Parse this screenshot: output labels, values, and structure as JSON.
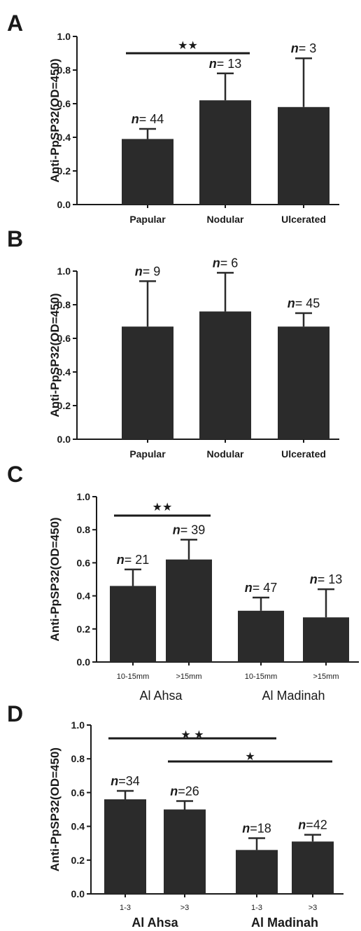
{
  "panel_labels": [
    "A",
    "B",
    "C",
    "D"
  ],
  "chart_data": [
    {
      "type": "bar",
      "panel": "A",
      "ylabel": "Anti-PpSP32(OD=450)",
      "ylim": [
        0,
        1.0
      ],
      "yticks": [
        "0.0",
        "0.2",
        "0.4",
        "0.6",
        "0.8",
        "1.0"
      ],
      "categories": [
        "Papular",
        "Nodular",
        "Ulcerated"
      ],
      "values": [
        0.39,
        0.62,
        0.58
      ],
      "errors": [
        0.06,
        0.16,
        0.29
      ],
      "n_labels": [
        {
          "prefix": "n",
          "text": "= 44"
        },
        {
          "prefix": "n",
          "text": "= 13"
        },
        {
          "prefix": "n",
          "text": "= 3"
        }
      ],
      "groups": [],
      "significance": [
        {
          "from": 0,
          "to": 1,
          "stars": "★★"
        }
      ]
    },
    {
      "type": "bar",
      "panel": "B",
      "ylabel": "Anti-PpSP32(OD=450)",
      "ylim": [
        0,
        1.0
      ],
      "yticks": [
        "0.0",
        "0.2",
        "0.4",
        "0.6",
        "0.8",
        "1.0"
      ],
      "categories": [
        "Papular",
        "Nodular",
        "Ulcerated"
      ],
      "values": [
        0.67,
        0.76,
        0.67
      ],
      "errors": [
        0.27,
        0.23,
        0.08
      ],
      "n_labels": [
        {
          "prefix": "n",
          "text": "= 9"
        },
        {
          "prefix": "n",
          "text": "= 6"
        },
        {
          "prefix": "n",
          "text": "= 45"
        }
      ],
      "groups": [],
      "significance": []
    },
    {
      "type": "bar",
      "panel": "C",
      "ylabel": "Anti-PpSP32(OD=450)",
      "ylim": [
        0,
        1.0
      ],
      "yticks": [
        "0.0",
        "0.2",
        "0.4",
        "0.6",
        "0.8",
        "1.0"
      ],
      "categories": [
        "10-15mm",
        ">15mm",
        "10-15mm",
        ">15mm"
      ],
      "values": [
        0.46,
        0.62,
        0.31,
        0.27
      ],
      "errors": [
        0.1,
        0.12,
        0.08,
        0.17
      ],
      "n_labels": [
        {
          "prefix": "n",
          "text": "= 21"
        },
        {
          "prefix": "n",
          "text": "= 39"
        },
        {
          "prefix": "n",
          "text": "= 47"
        },
        {
          "prefix": "n",
          "text": "= 13"
        }
      ],
      "groups": [
        {
          "label": "Al Ahsa",
          "from": 0,
          "to": 1
        },
        {
          "label": "Al Madinah",
          "from": 2,
          "to": 3
        }
      ],
      "significance": [
        {
          "from": 0,
          "to": 1,
          "stars": "★★"
        }
      ]
    },
    {
      "type": "bar",
      "panel": "D",
      "ylabel": "Anti-PpSP32(OD=450)",
      "ylim": [
        0,
        1.0
      ],
      "yticks": [
        "0.0",
        "0.2",
        "0.4",
        "0.6",
        "0.8",
        "1.0"
      ],
      "categories": [
        "1-3",
        ">3",
        "1-3",
        ">3"
      ],
      "values": [
        0.56,
        0.5,
        0.26,
        0.31
      ],
      "errors": [
        0.05,
        0.05,
        0.07,
        0.04
      ],
      "n_labels": [
        {
          "prefix": "n",
          "text": "=34"
        },
        {
          "prefix": "n",
          "text": "=26"
        },
        {
          "prefix": "n",
          "text": "=18"
        },
        {
          "prefix": "n",
          "text": "=42"
        }
      ],
      "groups": [
        {
          "label": "Al Ahsa",
          "from": 0,
          "to": 1
        },
        {
          "label": "Al Madinah",
          "from": 2,
          "to": 3
        }
      ],
      "significance": [
        {
          "from": 0,
          "to": 2,
          "stars": "★ ★"
        },
        {
          "from": 1,
          "to": 3,
          "stars": "★"
        }
      ]
    }
  ],
  "colors": {
    "bar": "#2b2b2b",
    "axis": "#1a1a1a",
    "text": "#1a1a1a"
  }
}
